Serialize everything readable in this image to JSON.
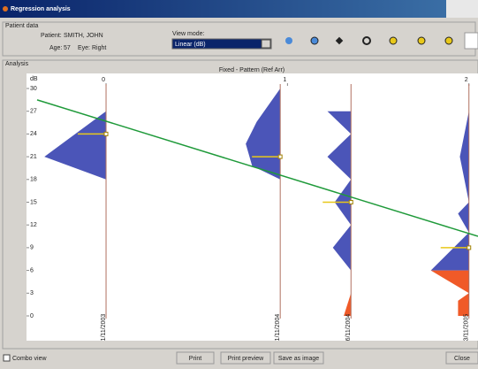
{
  "window": {
    "title": "Regression analysis"
  },
  "patient": {
    "group": "Patient data",
    "name_label": "Patient:",
    "name": "SMITH, JOHN",
    "age_label": "Age:",
    "age": "57",
    "eye_label": "Eye:",
    "eye": "Right"
  },
  "view_mode": {
    "label": "View mode:",
    "selected": "Linear (dB)"
  },
  "analysis_label": "Analysis",
  "chart_data": {
    "type": "regression",
    "title": "Fixed - Pattern (Ref Arr)",
    "y_label": "dB",
    "ylim": [
      0,
      30
    ],
    "yticks": [
      0,
      3,
      6,
      9,
      12,
      15,
      18,
      21,
      24,
      27,
      30
    ],
    "xlim": [
      -0.38,
      2.05
    ],
    "xticks": [
      0,
      1,
      2
    ],
    "profile_color": "#4b55b8",
    "loss_color": "#f05a28",
    "mean_color": "#e8c81a",
    "regression": {
      "color": "#1f9a3a",
      "x": [
        -0.38,
        2.05
      ],
      "y": [
        28.5,
        10.5
      ]
    },
    "visits": [
      {
        "x": 0,
        "date": "1/11/2003",
        "mean": 24,
        "profile_db": [
          27,
          21,
          18
        ],
        "profile_width": [
          0,
          0.34,
          0
        ],
        "loss_db": [],
        "loss_width": []
      },
      {
        "x": 0.96,
        "date": "1/11/2004",
        "mean": 21,
        "profile_db": [
          30,
          25.6,
          22.7,
          19.8,
          18
        ],
        "profile_width": [
          0,
          0.13,
          0.19,
          0.155,
          0
        ],
        "loss_db": [],
        "loss_width": []
      },
      {
        "x": 1.35,
        "date": "6/11/2004",
        "mean": 15,
        "profile_db": [
          27,
          24,
          21,
          18,
          15,
          12,
          9,
          6
        ],
        "profile_width": [
          0.13,
          0,
          0.13,
          0,
          0.09,
          0,
          0.1,
          0
        ],
        "loss_db": [
          3,
          0
        ],
        "loss_width": [
          0,
          0.04
        ]
      },
      {
        "x": 2,
        "date": "3/11/2005",
        "mean": 9,
        "profile_db": [
          27,
          21,
          15,
          13.5,
          11,
          6
        ],
        "profile_width": [
          0,
          0.05,
          0,
          0.06,
          0,
          0.21
        ],
        "loss_db": [
          6,
          3,
          2,
          0
        ],
        "loss_width": [
          0.21,
          0,
          0.06,
          0.06
        ]
      }
    ]
  },
  "footer": {
    "combo": "Combo view",
    "buttons": [
      "Print",
      "Print preview",
      "Save as image",
      "Close"
    ]
  }
}
